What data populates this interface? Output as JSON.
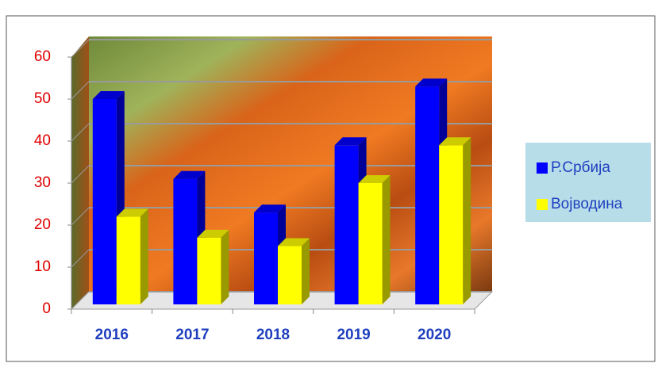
{
  "chart_data": {
    "type": "bar3d",
    "categories": [
      "2016",
      "2017",
      "2018",
      "2019",
      "2020"
    ],
    "series": [
      {
        "name": "Р.Србија",
        "color": "#0000ff",
        "values": [
          50,
          31,
          23,
          39,
          53
        ]
      },
      {
        "name": "Војводина",
        "color": "#ffff00",
        "values": [
          22,
          17,
          15,
          30,
          39
        ]
      }
    ],
    "ylim": [
      0,
      60
    ],
    "yticks": [
      0,
      10,
      20,
      30,
      40,
      50,
      60
    ],
    "grid": true,
    "legend": "right"
  }
}
